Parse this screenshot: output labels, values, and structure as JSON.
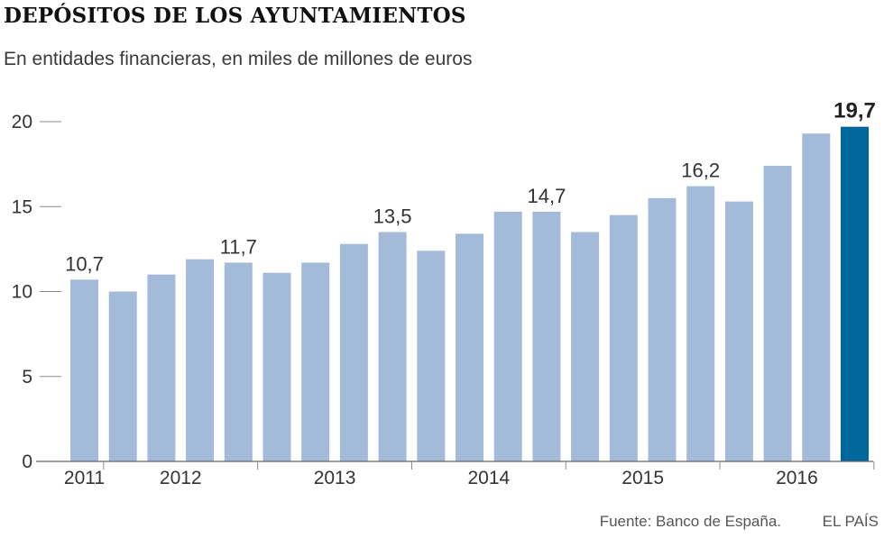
{
  "header": {
    "title": "DEPÓSITOS DE LOS AYUNTAMIENTOS",
    "subtitle": "En entidades financieras, en miles de millones de euros"
  },
  "footer": {
    "source": "Fuente: Banco de España.",
    "brand": "EL PAÍS"
  },
  "colors": {
    "bar": "#a3bbd8",
    "highlight_bar": "#00679c",
    "axis": "#888888",
    "text": "#333333"
  },
  "chart_data": {
    "type": "bar",
    "title": "DEPÓSITOS DE LOS AYUNTAMIENTOS",
    "subtitle": "En entidades financieras, en miles de millones de euros",
    "ylim": [
      0,
      20
    ],
    "yticks": [
      0,
      5,
      10,
      15,
      20
    ],
    "grid": false,
    "x_year_labels": [
      "2011",
      "2012",
      "2013",
      "2014",
      "2015",
      "2016"
    ],
    "values": [
      10.7,
      10.0,
      11.0,
      11.9,
      11.7,
      11.1,
      11.7,
      12.8,
      13.5,
      12.4,
      13.4,
      14.7,
      14.7,
      13.5,
      14.5,
      15.5,
      16.2,
      15.3,
      17.4,
      19.3,
      19.7
    ],
    "year_of_bar": [
      "2011",
      "2012",
      "2012",
      "2012",
      "2012",
      "2013",
      "2013",
      "2013",
      "2013",
      "2014",
      "2014",
      "2014",
      "2014",
      "2015",
      "2015",
      "2015",
      "2015",
      "2016",
      "2016",
      "2016",
      "2016"
    ],
    "data_labels": [
      {
        "index": 0,
        "text": "10,7"
      },
      {
        "index": 4,
        "text": "11,7"
      },
      {
        "index": 8,
        "text": "13,5"
      },
      {
        "index": 12,
        "text": "14,7"
      },
      {
        "index": 16,
        "text": "16,2"
      },
      {
        "index": 20,
        "text": "19,7",
        "emphasis": true
      }
    ],
    "highlight_index": 20
  }
}
